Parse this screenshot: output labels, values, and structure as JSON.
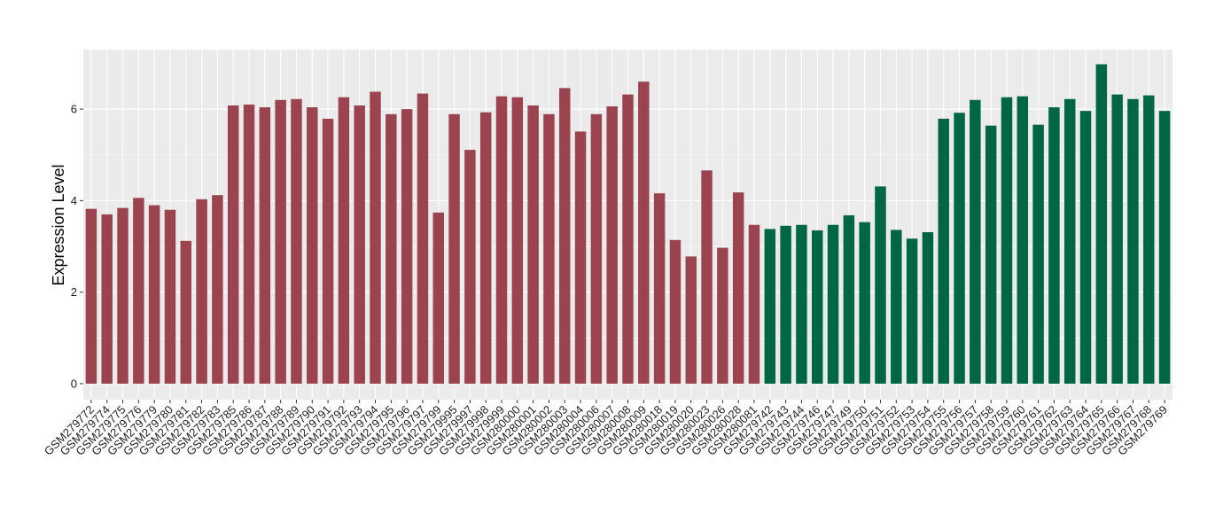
{
  "chart_data": {
    "type": "bar",
    "title": "",
    "xlabel": "",
    "ylabel": "Expression Level",
    "ylim": [
      -0.35,
      7.3
    ],
    "yticks": [
      0,
      2,
      4,
      6
    ],
    "grid": true,
    "legend": "none",
    "colors": {
      "group1": "#9B4450",
      "group2": "#006644",
      "panel": "#EBEBEB",
      "gridline": "#FFFFFF"
    },
    "categories": [
      "GSM279772",
      "GSM279774",
      "GSM279775",
      "GSM279776",
      "GSM279779",
      "GSM279780",
      "GSM279781",
      "GSM279782",
      "GSM279783",
      "GSM279785",
      "GSM279786",
      "GSM279787",
      "GSM279788",
      "GSM279789",
      "GSM279790",
      "GSM279791",
      "GSM279792",
      "GSM279793",
      "GSM279794",
      "GSM279795",
      "GSM279796",
      "GSM279797",
      "GSM279799",
      "GSM279995",
      "GSM279997",
      "GSM279998",
      "GSM279999",
      "GSM280000",
      "GSM280001",
      "GSM280002",
      "GSM280003",
      "GSM280004",
      "GSM280006",
      "GSM280007",
      "GSM280008",
      "GSM280009",
      "GSM280018",
      "GSM280019",
      "GSM280020",
      "GSM280023",
      "GSM280026",
      "GSM280028",
      "GSM280081",
      "GSM279742",
      "GSM279743",
      "GSM279744",
      "GSM279746",
      "GSM279747",
      "GSM279749",
      "GSM279750",
      "GSM279751",
      "GSM279752",
      "GSM279753",
      "GSM279754",
      "GSM279755",
      "GSM279756",
      "GSM279757",
      "GSM279758",
      "GSM279759",
      "GSM279760",
      "GSM279761",
      "GSM279762",
      "GSM279763",
      "GSM279764",
      "GSM279765",
      "GSM279766",
      "GSM279767",
      "GSM279768",
      "GSM279769"
    ],
    "values": [
      3.82,
      3.7,
      3.84,
      4.06,
      3.9,
      3.8,
      3.12,
      4.03,
      4.12,
      6.08,
      6.1,
      6.04,
      6.2,
      6.22,
      6.04,
      5.79,
      6.26,
      6.08,
      6.38,
      5.89,
      6.0,
      6.34,
      3.74,
      5.89,
      5.11,
      5.93,
      6.28,
      6.26,
      6.08,
      5.89,
      6.46,
      5.51,
      5.89,
      6.06,
      6.32,
      6.6,
      4.16,
      3.14,
      2.78,
      4.66,
      2.97,
      4.18,
      3.47,
      3.38,
      3.45,
      3.47,
      3.35,
      3.47,
      3.68,
      3.53,
      4.31,
      3.36,
      3.17,
      3.31,
      5.79,
      5.92,
      6.2,
      5.64,
      6.26,
      6.28,
      5.66,
      6.04,
      6.22,
      5.96,
      6.98,
      6.32,
      6.22,
      6.3,
      5.96
    ],
    "groups": [
      1,
      1,
      1,
      1,
      1,
      1,
      1,
      1,
      1,
      1,
      1,
      1,
      1,
      1,
      1,
      1,
      1,
      1,
      1,
      1,
      1,
      1,
      1,
      1,
      1,
      1,
      1,
      1,
      1,
      1,
      1,
      1,
      1,
      1,
      1,
      1,
      1,
      1,
      1,
      1,
      1,
      1,
      1,
      2,
      2,
      2,
      2,
      2,
      2,
      2,
      2,
      2,
      2,
      2,
      2,
      2,
      2,
      2,
      2,
      2,
      2,
      2,
      2,
      2,
      2,
      2,
      2,
      2,
      2
    ]
  }
}
